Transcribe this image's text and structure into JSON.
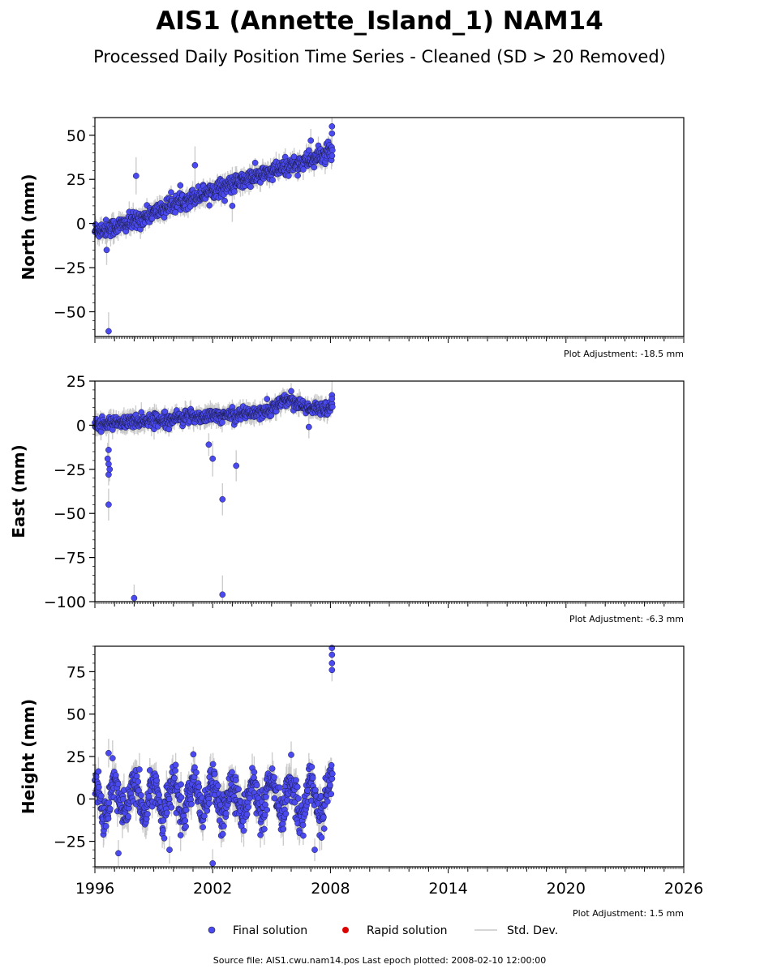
{
  "title": "AIS1 (Annette_Island_1) NAM14",
  "subtitle": "Processed Daily Position Time Series - Cleaned (SD > 20 Removed)",
  "footer": "Source file: AIS1.cwu.nam14.pos  Last epoch plotted: 2008-02-10 12:00:00",
  "legend": {
    "final": "Final solution",
    "rapid": "Rapid solution",
    "std": "Std. Dev."
  },
  "colors": {
    "final": "#4a4af0",
    "rapid": "#dd0000",
    "std": "#c8c8c8"
  },
  "chart_data": [
    {
      "type": "scatter",
      "ylabel": "North (mm)",
      "adjustment": "Plot Adjustment: -18.5 mm",
      "xlim": [
        1996.0,
        2026.0
      ],
      "ylim": [
        -64,
        60
      ],
      "yticks": [
        50,
        25,
        0,
        -25,
        -50
      ],
      "ytick_labels": [
        "50",
        "25",
        "0",
        "−25",
        "−50"
      ],
      "trend": [
        [
          1996.0,
          -4
        ],
        [
          1997.0,
          -2
        ],
        [
          1998.0,
          1
        ],
        [
          1999.0,
          6
        ],
        [
          2000.0,
          11
        ],
        [
          2001.0,
          15
        ],
        [
          2002.0,
          19
        ],
        [
          2003.0,
          22
        ],
        [
          2004.0,
          26
        ],
        [
          2005.0,
          29
        ],
        [
          2006.0,
          33
        ],
        [
          2007.0,
          36
        ],
        [
          2007.9,
          40
        ]
      ],
      "outliers": [
        [
          1996.7,
          -61
        ],
        [
          1998.1,
          27
        ],
        [
          2001.1,
          33
        ],
        [
          1996.6,
          -15
        ],
        [
          2003.0,
          10
        ],
        [
          2008.08,
          55
        ],
        [
          2008.08,
          51
        ],
        [
          2007.0,
          47
        ]
      ]
    },
    {
      "type": "scatter",
      "ylabel": "East (mm)",
      "adjustment": "Plot Adjustment: -6.3 mm",
      "xlim": [
        1996.0,
        2026.0
      ],
      "ylim": [
        -100,
        25
      ],
      "yticks": [
        25,
        0,
        -25,
        -50,
        -75,
        -100
      ],
      "ytick_labels": [
        "25",
        "0",
        "−25",
        "−50",
        "−75",
        "−100"
      ],
      "trend": [
        [
          1996.0,
          0
        ],
        [
          1997.0,
          1
        ],
        [
          1998.0,
          2
        ],
        [
          1999.0,
          3
        ],
        [
          2000.0,
          4
        ],
        [
          2001.0,
          5
        ],
        [
          2002.0,
          5
        ],
        [
          2003.0,
          6
        ],
        [
          2004.0,
          7
        ],
        [
          2005.0,
          9
        ],
        [
          2005.5,
          13
        ],
        [
          2006.0,
          15
        ],
        [
          2006.5,
          11
        ],
        [
          2007.0,
          9
        ],
        [
          2007.9,
          10
        ]
      ],
      "outliers": [
        [
          1996.7,
          -45
        ],
        [
          1996.7,
          -28
        ],
        [
          1996.75,
          -25
        ],
        [
          1996.7,
          -22
        ],
        [
          1996.65,
          -19
        ],
        [
          1996.7,
          -14
        ],
        [
          1998.0,
          -98
        ],
        [
          2001.8,
          -11
        ],
        [
          2002.0,
          -19
        ],
        [
          2002.5,
          -42
        ],
        [
          2002.5,
          -96
        ],
        [
          2003.2,
          -23
        ],
        [
          2006.9,
          -1
        ],
        [
          2008.08,
          17
        ],
        [
          2008.08,
          15
        ]
      ]
    },
    {
      "type": "scatter",
      "ylabel": "Height (mm)",
      "adjustment": "Plot Adjustment: 1.5 mm",
      "xlim": [
        1996.0,
        2026.0
      ],
      "ylim": [
        -40,
        90
      ],
      "yticks": [
        75,
        50,
        25,
        0,
        -25
      ],
      "ytick_labels": [
        "75",
        "50",
        "25",
        "0",
        "−25"
      ],
      "xticks": [
        1996,
        2002,
        2008,
        2014,
        2020,
        2026
      ],
      "xtick_labels": [
        "1996",
        "2002",
        "2008",
        "2014",
        "2020",
        "2026"
      ],
      "seasonal_amplitude_mm": 10,
      "outliers": [
        [
          2008.08,
          89
        ],
        [
          2008.08,
          85
        ],
        [
          2008.08,
          80
        ],
        [
          2008.08,
          76
        ],
        [
          1996.7,
          27
        ],
        [
          1996.9,
          24
        ],
        [
          1997.2,
          -32
        ],
        [
          1999.8,
          -30
        ],
        [
          2002.0,
          -38
        ],
        [
          2007.2,
          -30
        ],
        [
          2006.0,
          26
        ]
      ]
    }
  ]
}
